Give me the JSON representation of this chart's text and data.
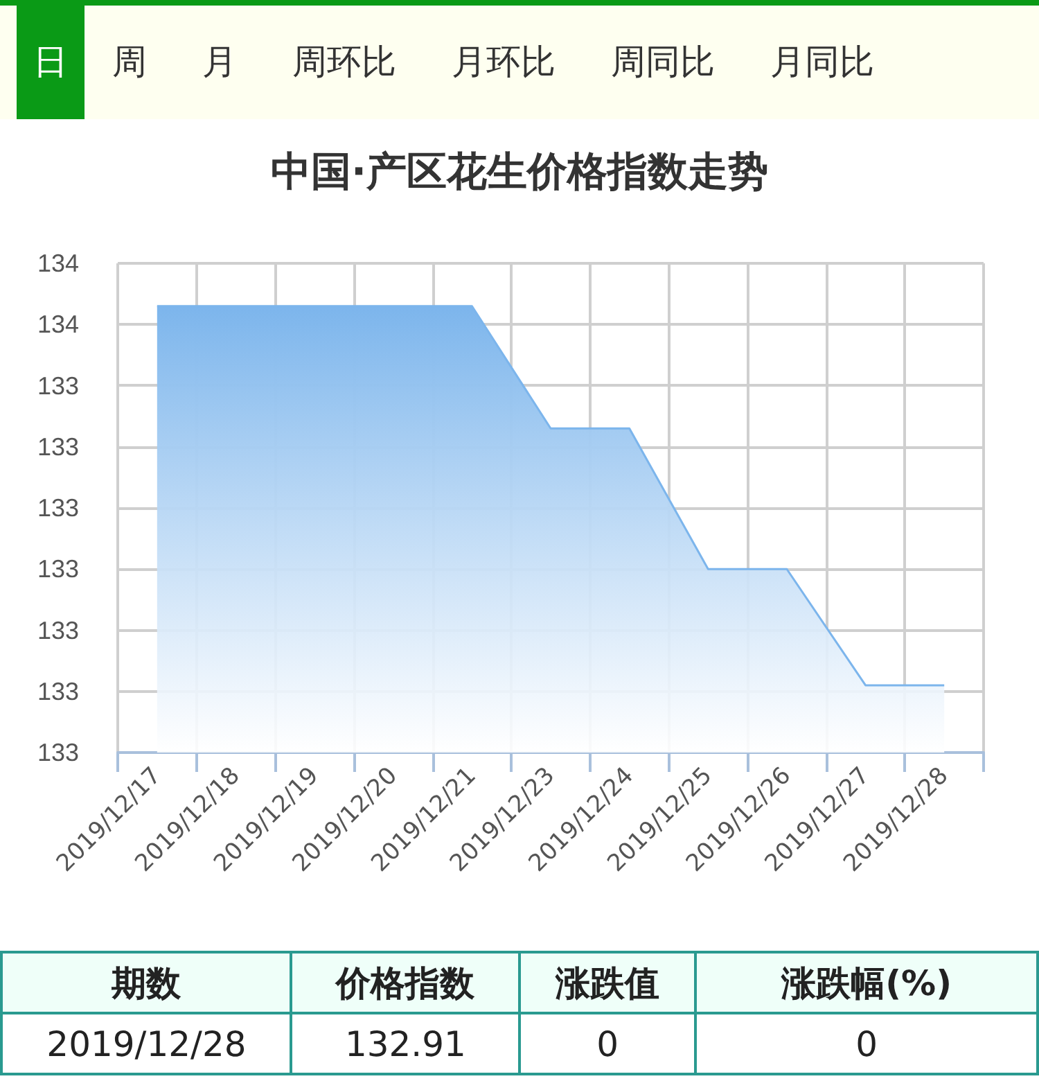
{
  "chart_data": {
    "type": "area",
    "title": "中国·产区花生价格指数走势",
    "annotations": [
      "日",
      "周",
      "月",
      "周环比",
      "月环比",
      "周同比",
      "月同比",
      "期数",
      "价格指数",
      "涨跌值",
      "涨跌幅(%)",
      "2019/12/28",
      "132.91",
      "0",
      "0"
    ],
    "categories": [
      "2019/12/17",
      "2019/12/18",
      "2019/12/19",
      "2019/12/20",
      "2019/12/21",
      "2019/12/23",
      "2019/12/24",
      "2019/12/25",
      "2019/12/26",
      "2019/12/27",
      "2019/12/28"
    ],
    "series": [
      {
        "color": "#7cb5ec",
        "values": [
          133.53,
          133.53,
          133.53,
          133.53,
          133.53,
          133.33,
          133.33,
          133.1,
          133.1,
          132.91,
          132.91
        ]
      }
    ],
    "ylim": [
      132.8,
      133.6
    ],
    "yticks": [
      {
        "value": 132.8,
        "label": "133"
      },
      {
        "value": 132.9,
        "label": "133"
      },
      {
        "value": 133.0,
        "label": "133"
      },
      {
        "value": 133.1,
        "label": "133"
      },
      {
        "value": 133.2,
        "label": "133"
      },
      {
        "value": 133.3,
        "label": "133"
      },
      {
        "value": 133.4,
        "label": "133"
      },
      {
        "value": 133.5,
        "label": "134"
      },
      {
        "value": 133.6,
        "label": "134"
      }
    ],
    "grid": true,
    "marker": "none",
    "line_style": "solid"
  }
}
